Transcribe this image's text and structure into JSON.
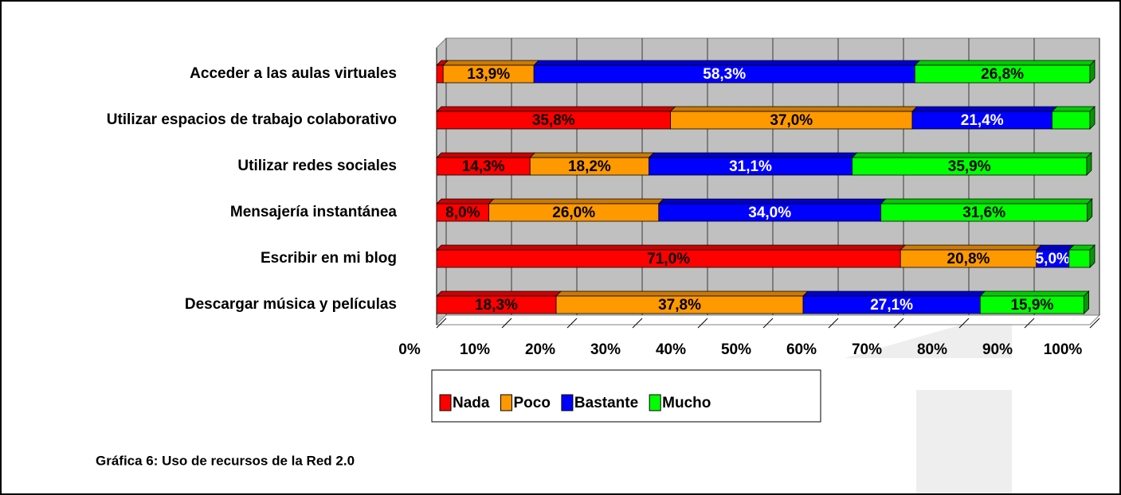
{
  "chart_data": {
    "type": "stacked-bar-horizontal",
    "caption": "Gráfica 6:  Uso de recursos de la Red 2.0",
    "categories": [
      "Acceder a las aulas virtuales",
      "Utilizar espacios de trabajo colaborativo",
      "Utilizar redes sociales",
      "Mensajería instantánea",
      "Escribir en mi blog",
      "Descargar música y películas"
    ],
    "series": [
      {
        "name": "Nada",
        "color": "#ff0000",
        "label_color": "#000000",
        "values": [
          1.0,
          35.8,
          14.3,
          8.0,
          71.0,
          18.3
        ],
        "value_labels": [
          null,
          "35,8%",
          "14,3%",
          "8,0%",
          "71,0%",
          "18,3%"
        ]
      },
      {
        "name": "Poco",
        "color": "#ff9900",
        "label_color": "#000000",
        "values": [
          13.9,
          37.0,
          18.2,
          26.0,
          20.8,
          37.8
        ],
        "value_labels": [
          "13,9%",
          "37,0%",
          "18,2%",
          "26,0%",
          "20,8%",
          "37,8%"
        ]
      },
      {
        "name": "Bastante",
        "color": "#0000ff",
        "label_color": "#ffffff",
        "values": [
          58.3,
          21.4,
          31.1,
          34.0,
          5.0,
          27.1
        ],
        "value_labels": [
          "58,3%",
          "21,4%",
          "31,1%",
          "34,0%",
          "5,0%",
          "27,1%"
        ]
      },
      {
        "name": "Mucho",
        "color": "#00ff00",
        "label_color": "#000000",
        "values": [
          26.8,
          5.8,
          35.9,
          31.6,
          3.2,
          15.9
        ],
        "value_labels": [
          "26,8%",
          null,
          "35,9%",
          "31,6%",
          null,
          "15,9%"
        ]
      }
    ],
    "xlim": [
      0,
      100
    ],
    "xticks": [
      {
        "value": 0,
        "label": "0%"
      },
      {
        "value": 10,
        "label": "10%"
      },
      {
        "value": 20,
        "label": "20%"
      },
      {
        "value": 30,
        "label": "30%"
      },
      {
        "value": 40,
        "label": "40%"
      },
      {
        "value": 50,
        "label": "50%"
      },
      {
        "value": 60,
        "label": "60%"
      },
      {
        "value": 70,
        "label": "70%"
      },
      {
        "value": 80,
        "label": "80%"
      },
      {
        "value": 90,
        "label": "90%"
      },
      {
        "value": 100,
        "label": "100%"
      }
    ],
    "grid": true,
    "legend": "bottom"
  }
}
